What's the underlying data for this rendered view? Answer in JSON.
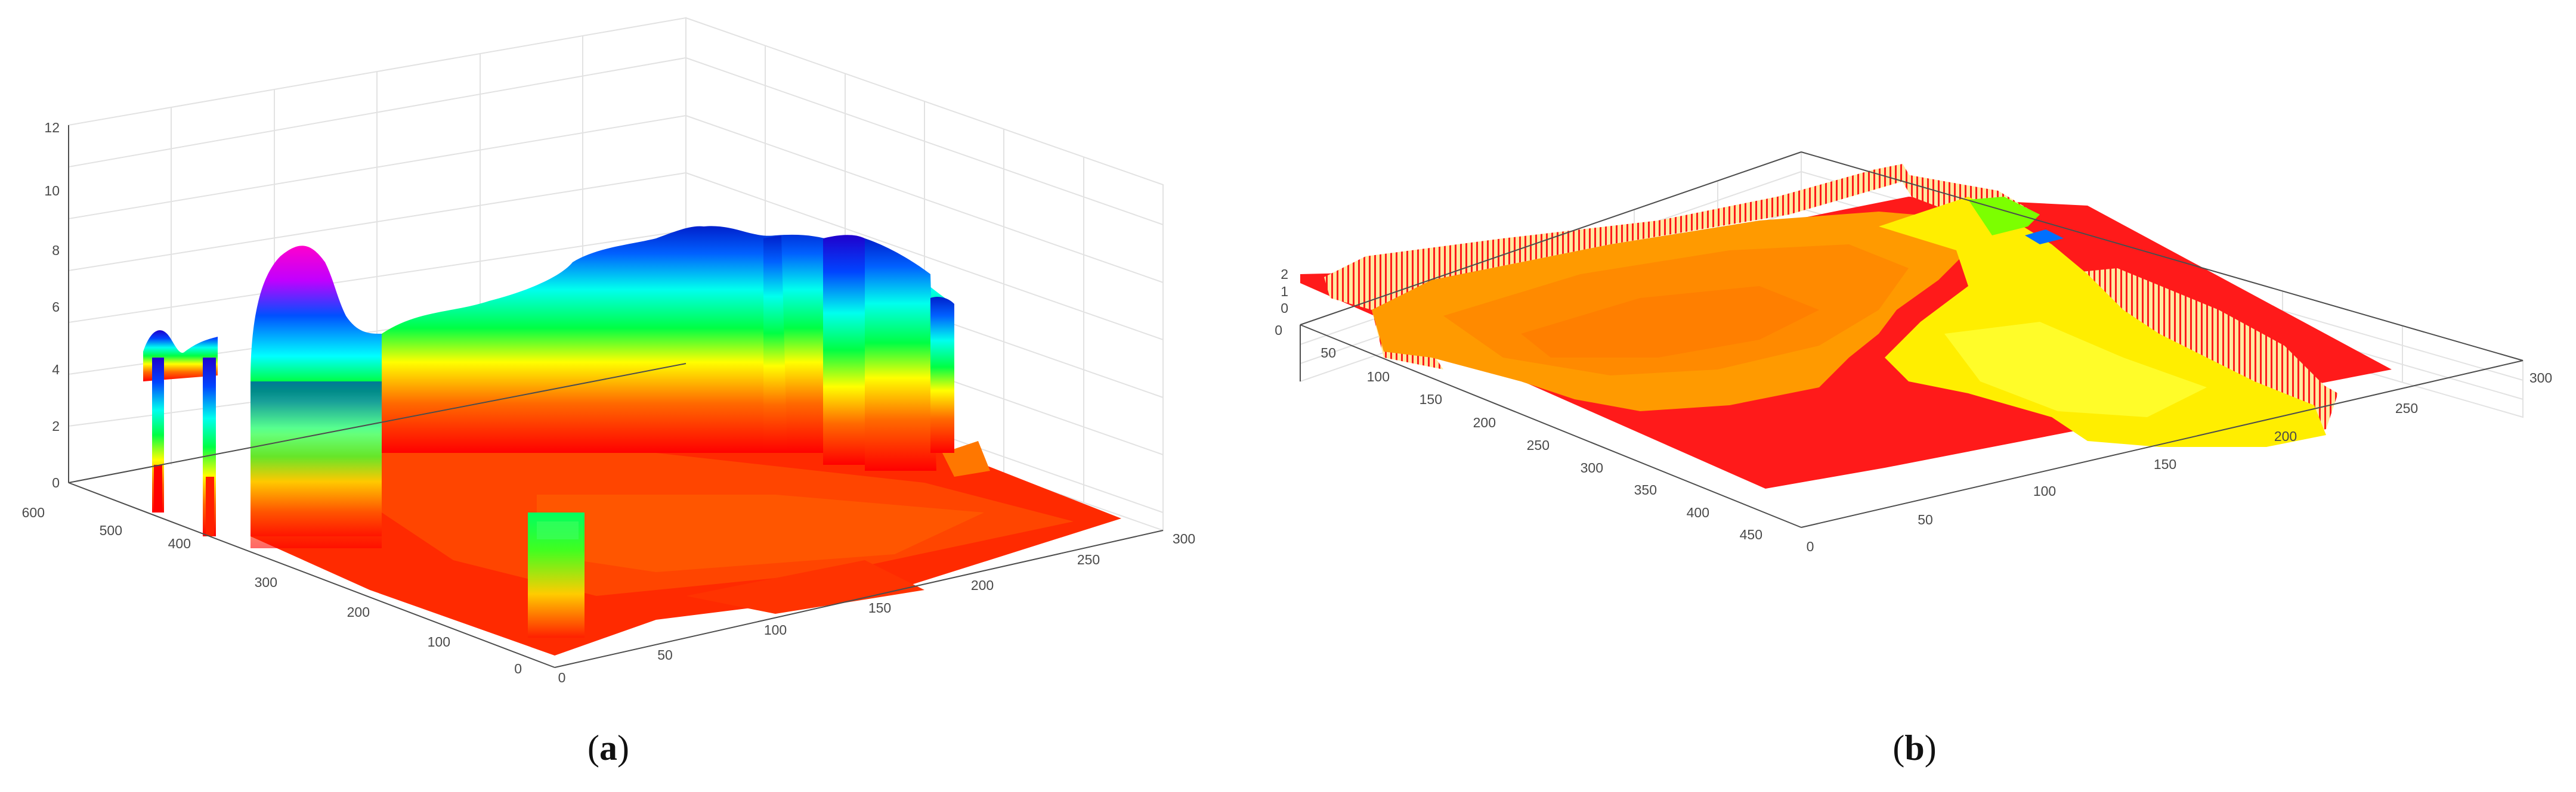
{
  "panels": [
    {
      "caption": {
        "open": "(",
        "letter": "a",
        "close": ")"
      },
      "chart_data": {
        "type": "surface3d",
        "x_ticks": [
          "0",
          "50",
          "100",
          "150",
          "200",
          "250",
          "300"
        ],
        "y_ticks": [
          "0",
          "100",
          "200",
          "300",
          "400",
          "500",
          "600"
        ],
        "z_ticks": [
          "0",
          "2",
          "4",
          "6",
          "8",
          "10",
          "12"
        ],
        "xlim": [
          0,
          300
        ],
        "ylim": [
          0,
          600
        ],
        "zlim": [
          0,
          12
        ],
        "colormap": [
          "#ff0000",
          "#ff8000",
          "#ffff00",
          "#00ff00",
          "#00ffff",
          "#0000ff",
          "#ff00ff"
        ],
        "grid": true
      }
    },
    {
      "caption": {
        "open": "(",
        "letter": "b",
        "close": ")"
      },
      "chart_data": {
        "type": "surface3d",
        "x_ticks": [
          "0",
          "50",
          "100",
          "150",
          "200",
          "250",
          "300"
        ],
        "y_ticks": [
          "0",
          "50",
          "100",
          "150",
          "200",
          "250",
          "300",
          "350",
          "400",
          "450"
        ],
        "z_ticks": [
          "0",
          "1",
          "2"
        ],
        "xlim": [
          0,
          300
        ],
        "ylim": [
          0,
          450
        ],
        "zlim": [
          0,
          2
        ],
        "colormap": [
          "#ff0000",
          "#ff9900",
          "#ffff00",
          "#66ff00",
          "#0066ff"
        ],
        "grid": true
      }
    }
  ]
}
